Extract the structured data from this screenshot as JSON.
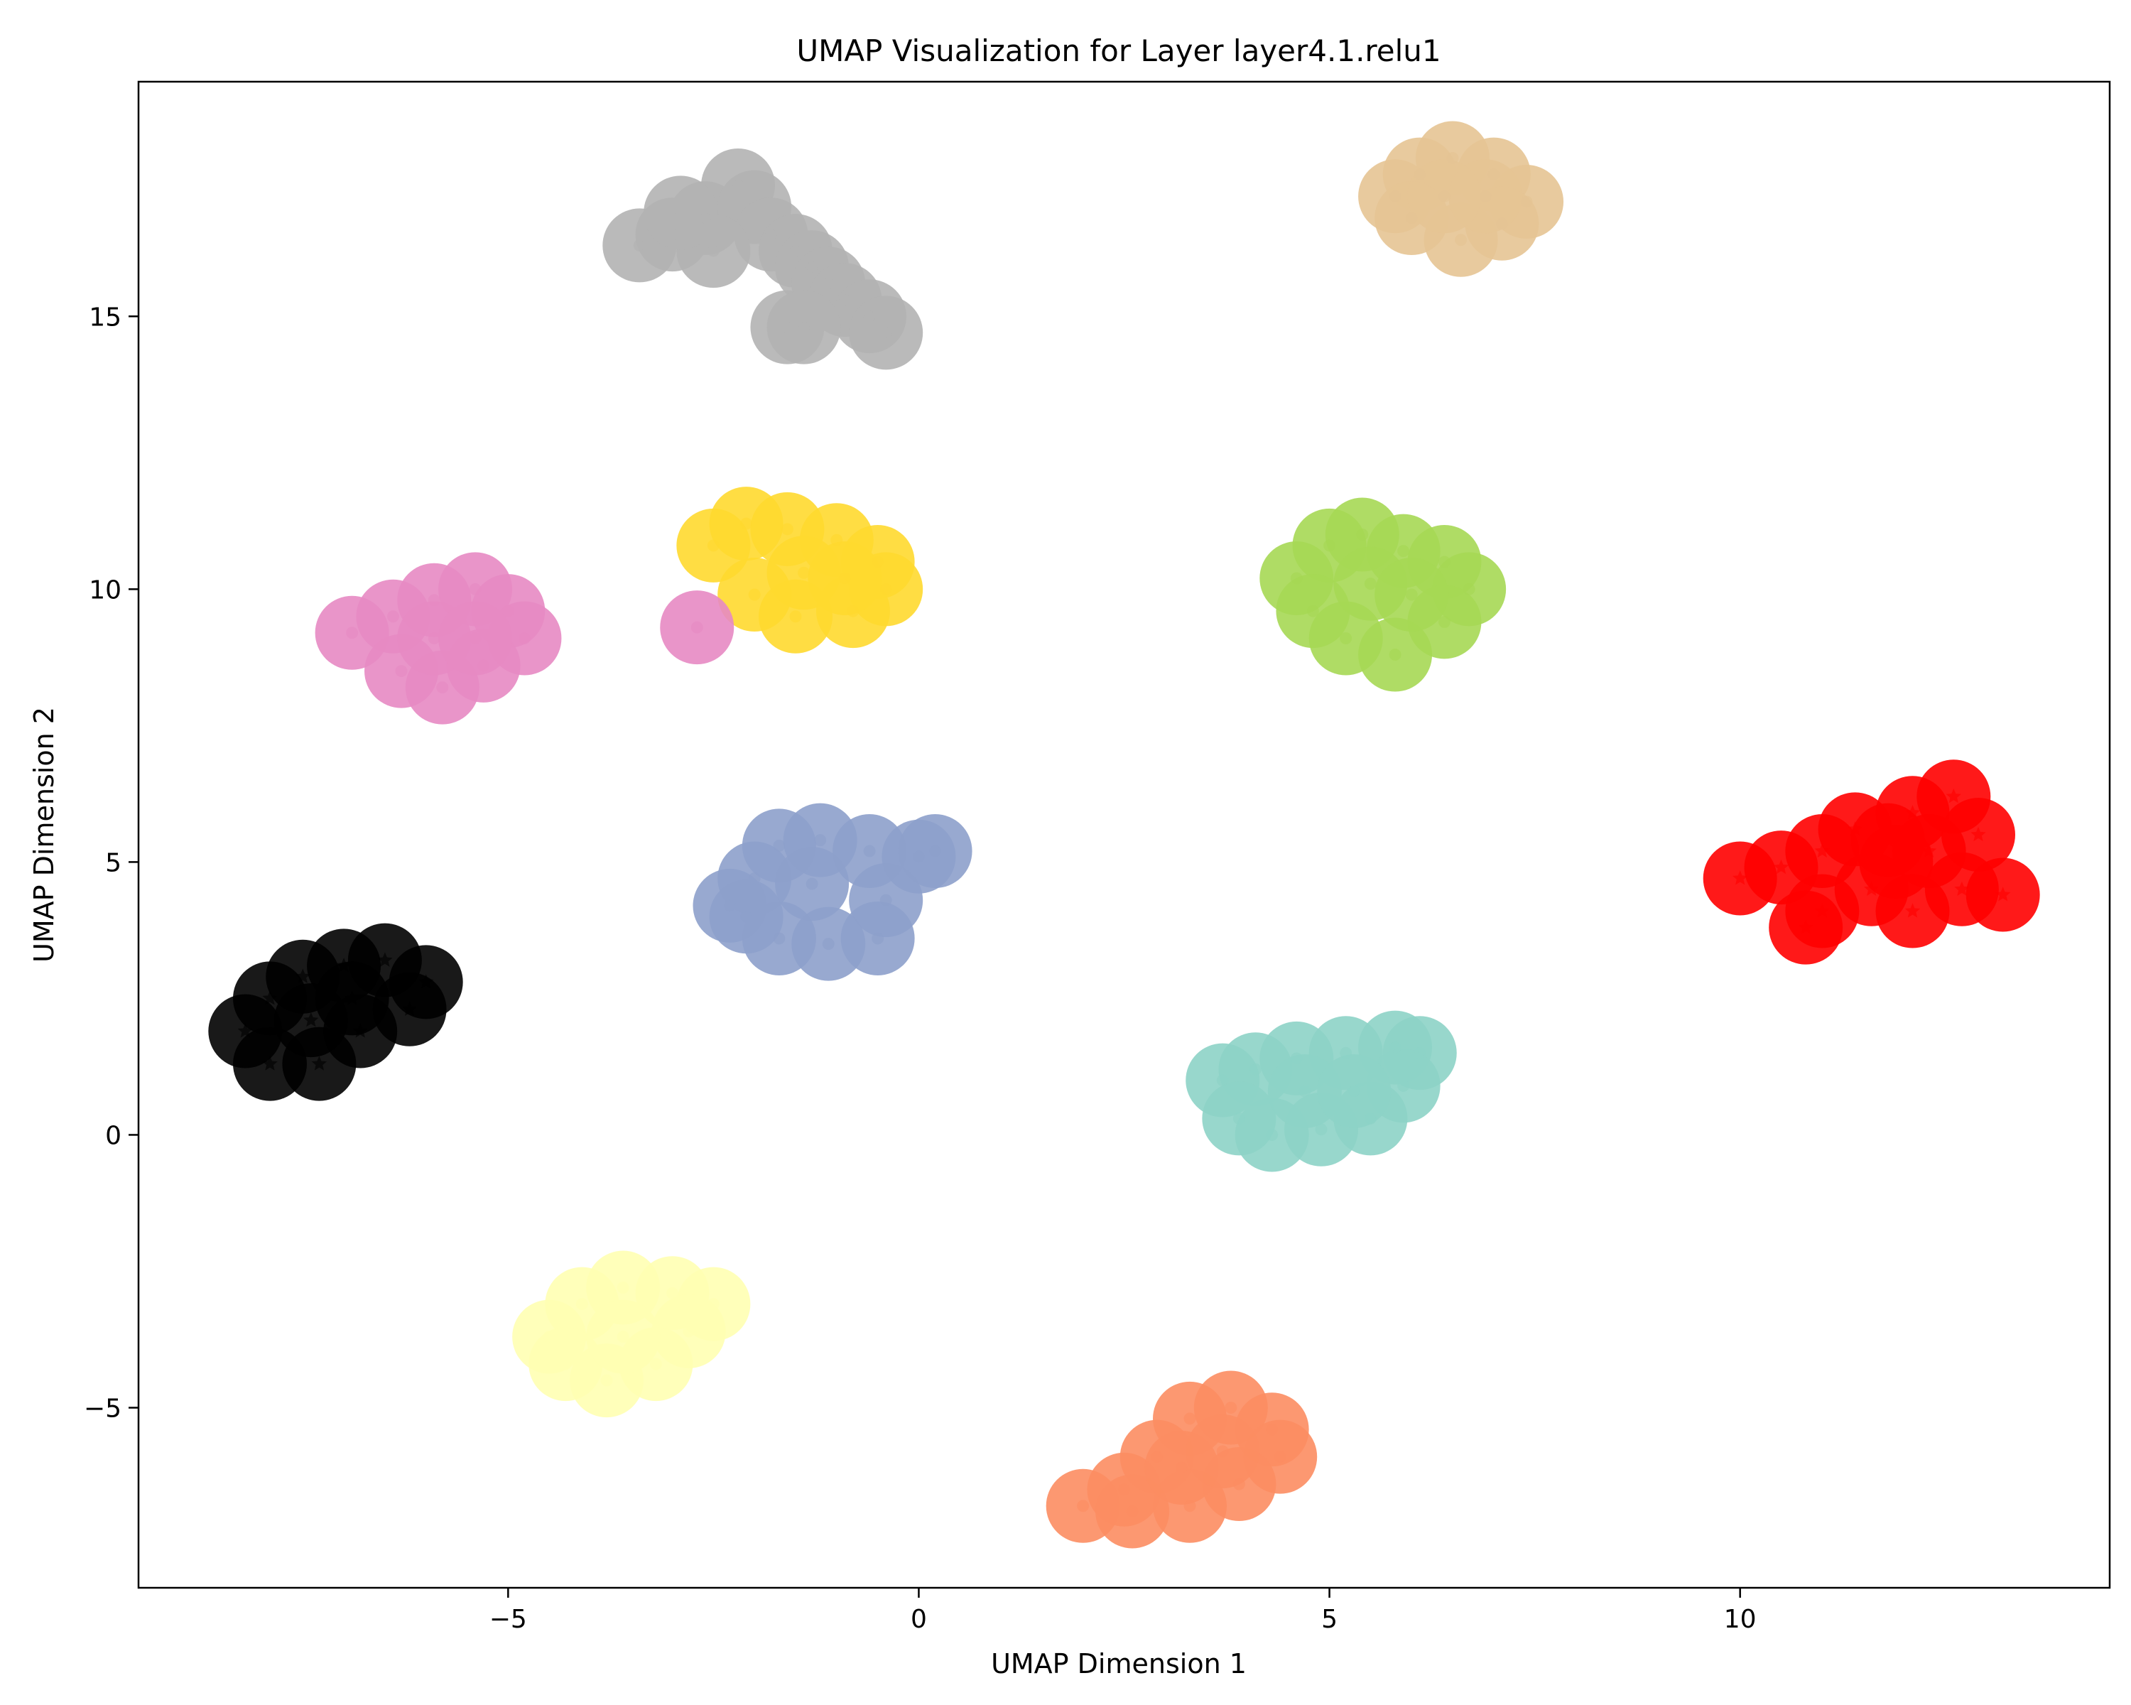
{
  "chart_data": {
    "type": "scatter",
    "title": "UMAP Visualization for Layer layer4.1.relu1",
    "xlabel": "UMAP Dimension 1",
    "ylabel": "UMAP Dimension 2",
    "xlim": [
      -9.5,
      14.5
    ],
    "ylim": [
      -8.3,
      19.3
    ],
    "xticks": [
      -5,
      0,
      5,
      10
    ],
    "yticks": [
      -5,
      0,
      5,
      10,
      15
    ],
    "grid": false,
    "legend": "none",
    "clusters": [
      {
        "color": "#b3b3b3",
        "marker": "circle",
        "points": [
          [
            -3.4,
            16.3
          ],
          [
            -3.0,
            16.5
          ],
          [
            -2.6,
            16.8
          ],
          [
            -2.2,
            17.4
          ],
          [
            -2.0,
            17.0
          ],
          [
            -1.8,
            16.5
          ],
          [
            -1.5,
            16.2
          ],
          [
            -1.3,
            15.9
          ],
          [
            -1.1,
            15.6
          ],
          [
            -0.9,
            15.3
          ],
          [
            -0.6,
            15.0
          ],
          [
            -0.4,
            14.7
          ],
          [
            -2.5,
            16.2
          ],
          [
            -2.9,
            16.9
          ],
          [
            -1.6,
            14.8
          ],
          [
            -1.4,
            14.8
          ]
        ]
      },
      {
        "color": "#e5c494",
        "marker": "circle",
        "points": [
          [
            5.8,
            17.2
          ],
          [
            6.1,
            17.6
          ],
          [
            6.5,
            17.9
          ],
          [
            7.0,
            17.6
          ],
          [
            7.4,
            17.1
          ],
          [
            7.1,
            16.7
          ],
          [
            6.6,
            16.4
          ],
          [
            6.0,
            16.8
          ],
          [
            6.4,
            17.2
          ],
          [
            6.9,
            17.2
          ]
        ]
      },
      {
        "color": "#ffd92f",
        "marker": "circle",
        "points": [
          [
            -2.5,
            10.8
          ],
          [
            -2.1,
            11.2
          ],
          [
            -1.6,
            11.1
          ],
          [
            -1.0,
            10.9
          ],
          [
            -0.5,
            10.5
          ],
          [
            -0.4,
            10.0
          ],
          [
            -0.8,
            9.6
          ],
          [
            -1.5,
            9.5
          ],
          [
            -2.0,
            9.9
          ],
          [
            -1.4,
            10.3
          ],
          [
            -0.9,
            10.2
          ]
        ]
      },
      {
        "color": "#e78ac3",
        "marker": "circle",
        "points": [
          [
            -6.9,
            9.2
          ],
          [
            -6.4,
            9.5
          ],
          [
            -5.9,
            9.8
          ],
          [
            -5.4,
            10.0
          ],
          [
            -5.0,
            9.6
          ],
          [
            -4.8,
            9.1
          ],
          [
            -5.3,
            8.6
          ],
          [
            -5.8,
            8.2
          ],
          [
            -6.3,
            8.5
          ],
          [
            -5.9,
            9.1
          ],
          [
            -5.4,
            9.1
          ],
          [
            -2.7,
            9.3
          ]
        ]
      },
      {
        "color": "#a6d854",
        "marker": "circle",
        "points": [
          [
            4.6,
            10.2
          ],
          [
            5.0,
            10.8
          ],
          [
            5.4,
            11.0
          ],
          [
            5.9,
            10.7
          ],
          [
            6.4,
            10.5
          ],
          [
            6.7,
            10.0
          ],
          [
            6.4,
            9.4
          ],
          [
            5.8,
            8.8
          ],
          [
            5.2,
            9.1
          ],
          [
            4.8,
            9.6
          ],
          [
            5.5,
            10.1
          ],
          [
            6.0,
            9.9
          ]
        ]
      },
      {
        "color": "#8da0cb",
        "marker": "circle",
        "points": [
          [
            -2.3,
            4.2
          ],
          [
            -2.0,
            4.7
          ],
          [
            -1.7,
            5.3
          ],
          [
            -1.2,
            5.4
          ],
          [
            -0.6,
            5.2
          ],
          [
            0.0,
            5.1
          ],
          [
            0.2,
            5.2
          ],
          [
            -0.4,
            4.3
          ],
          [
            -0.5,
            3.6
          ],
          [
            -1.1,
            3.5
          ],
          [
            -1.7,
            3.6
          ],
          [
            -2.1,
            4.0
          ],
          [
            -1.3,
            4.6
          ]
        ]
      },
      {
        "color": "#ff0000",
        "marker": "star",
        "points": [
          [
            10.0,
            4.7
          ],
          [
            10.5,
            4.9
          ],
          [
            11.0,
            5.2
          ],
          [
            11.4,
            5.6
          ],
          [
            11.8,
            5.4
          ],
          [
            12.1,
            5.9
          ],
          [
            12.6,
            6.2
          ],
          [
            12.9,
            5.5
          ],
          [
            13.2,
            4.4
          ],
          [
            12.7,
            4.5
          ],
          [
            12.1,
            4.1
          ],
          [
            11.6,
            4.5
          ],
          [
            11.0,
            4.1
          ],
          [
            10.8,
            3.8
          ],
          [
            11.9,
            5.0
          ],
          [
            12.3,
            5.2
          ]
        ]
      },
      {
        "color": "#000000",
        "marker": "star",
        "points": [
          [
            -8.2,
            1.9
          ],
          [
            -7.9,
            2.5
          ],
          [
            -7.5,
            2.9
          ],
          [
            -7.0,
            3.1
          ],
          [
            -6.5,
            3.2
          ],
          [
            -6.0,
            2.8
          ],
          [
            -6.2,
            2.3
          ],
          [
            -6.8,
            1.9
          ],
          [
            -7.3,
            1.3
          ],
          [
            -7.9,
            1.3
          ],
          [
            -7.4,
            2.1
          ],
          [
            -6.9,
            2.5
          ]
        ]
      },
      {
        "color": "#8dd3c7",
        "marker": "circle",
        "points": [
          [
            3.7,
            1.0
          ],
          [
            4.1,
            1.2
          ],
          [
            4.6,
            1.4
          ],
          [
            5.2,
            1.5
          ],
          [
            5.8,
            1.6
          ],
          [
            6.1,
            1.5
          ],
          [
            5.9,
            0.9
          ],
          [
            5.5,
            0.3
          ],
          [
            4.9,
            0.1
          ],
          [
            4.3,
            0.0
          ],
          [
            3.9,
            0.3
          ],
          [
            4.7,
            0.8
          ],
          [
            5.3,
            0.8
          ]
        ]
      },
      {
        "color": "#ffffb3",
        "marker": "circle",
        "points": [
          [
            -4.5,
            -3.7
          ],
          [
            -4.1,
            -3.1
          ],
          [
            -3.6,
            -2.8
          ],
          [
            -3.0,
            -2.9
          ],
          [
            -2.5,
            -3.1
          ],
          [
            -2.8,
            -3.6
          ],
          [
            -3.2,
            -4.2
          ],
          [
            -3.8,
            -4.5
          ],
          [
            -4.3,
            -4.2
          ],
          [
            -3.6,
            -3.7
          ]
        ]
      },
      {
        "color": "#fc8d62",
        "marker": "circle",
        "points": [
          [
            2.0,
            -6.8
          ],
          [
            2.5,
            -6.5
          ],
          [
            2.9,
            -5.9
          ],
          [
            3.3,
            -5.2
          ],
          [
            3.8,
            -5.0
          ],
          [
            4.3,
            -5.4
          ],
          [
            4.4,
            -5.9
          ],
          [
            3.9,
            -6.4
          ],
          [
            3.3,
            -6.8
          ],
          [
            2.6,
            -6.9
          ],
          [
            3.2,
            -6.1
          ],
          [
            3.7,
            -5.8
          ]
        ]
      }
    ]
  }
}
